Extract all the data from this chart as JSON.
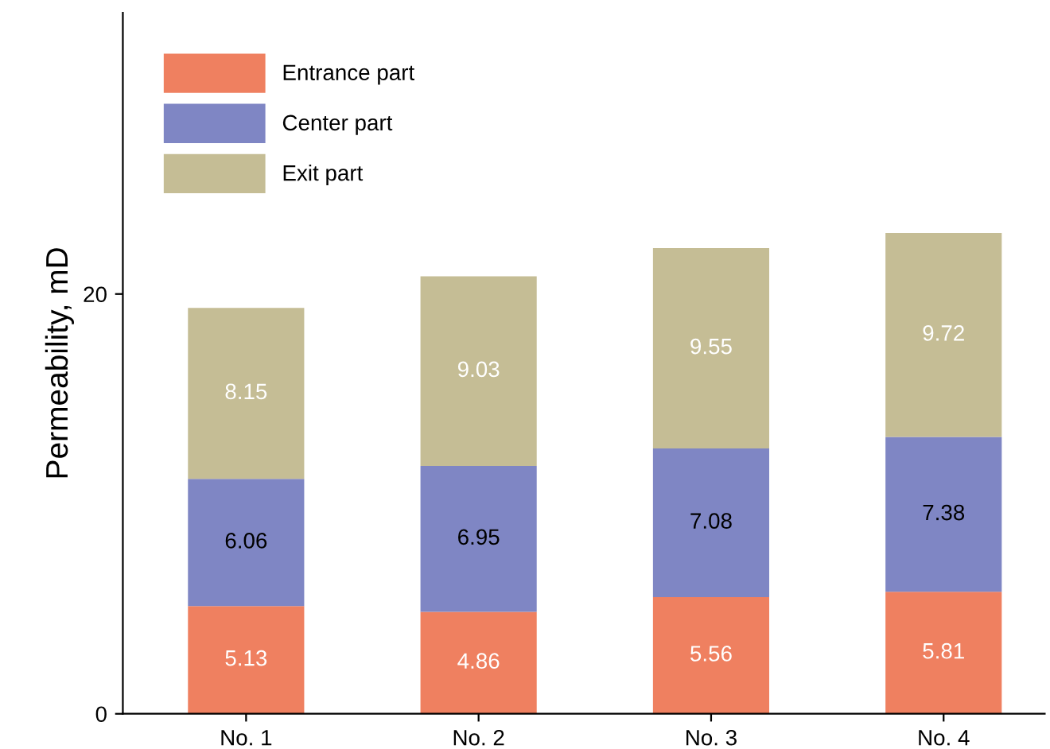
{
  "chart_data": {
    "type": "bar",
    "stacked": true,
    "ylabel": "Permeability, mD",
    "categories": [
      "No. 1",
      "No. 2",
      "No. 3",
      "No. 4"
    ],
    "series": [
      {
        "name": "Entrance part",
        "color": "#ef8060",
        "values": [
          5.13,
          4.86,
          5.56,
          5.81
        ]
      },
      {
        "name": "Center part",
        "color": "#7f86c4",
        "values": [
          6.06,
          6.95,
          7.08,
          7.38
        ]
      },
      {
        "name": "Exit part",
        "color": "#c5bd95",
        "values": [
          8.15,
          9.03,
          9.55,
          9.72
        ]
      }
    ],
    "ylim": [
      0,
      33.4
    ],
    "yticks": [
      0,
      20
    ],
    "data_labels": true,
    "legend": "top left",
    "grid": false
  }
}
